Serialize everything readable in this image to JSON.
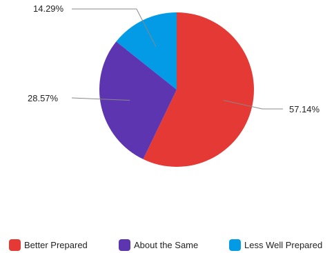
{
  "chart_data": {
    "type": "pie",
    "title": "",
    "categories": [
      "Better Prepared",
      "About the Same",
      "Less Well Prepared"
    ],
    "values": [
      57.14,
      28.57,
      14.29
    ],
    "data_labels": [
      "57.14%",
      "28.57%",
      "14.29%"
    ],
    "colors": [
      "#e53935",
      "#5e35b1",
      "#039be5"
    ],
    "start_angle": "12 o'clock",
    "direction": "clockwise",
    "legend_position": "bottom"
  }
}
